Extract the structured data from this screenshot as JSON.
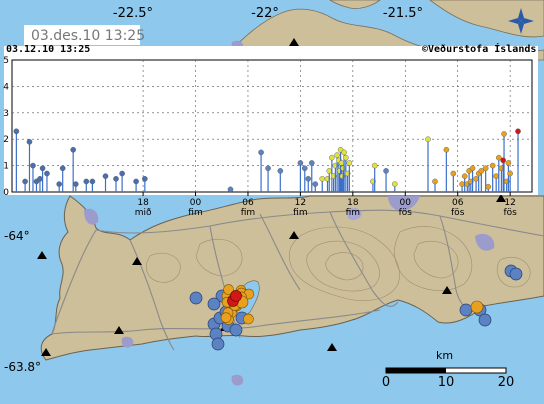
{
  "map": {
    "date_badge": "03.des.10  13:25",
    "timestamp": "03.12.10  13:25",
    "credit": "©Veðurstofa Íslands",
    "logo_icon": "vedurstofa-logo-icon",
    "longitude_labels": [
      "-22.5°",
      "-22°",
      "-21.5°"
    ],
    "latitude_labels": [
      "-64°",
      "-63.8°"
    ],
    "scale_bar": {
      "unit": "km",
      "ticks": [
        "0",
        "10",
        "20"
      ]
    },
    "colors": {
      "sea": "#8ec8ec",
      "land": "#cdbf9a",
      "contour": "#a08d70",
      "road": "#8a8a8a",
      "lake": "#a8a8d8",
      "town": "#9c9ccc",
      "oldest": "#4a6fae",
      "older": "#5b82c2",
      "recent_day": "#e0e040",
      "recent_hours": "#e8a020",
      "latest": "#d01818"
    },
    "quake_counts": {
      "red": 2,
      "orange": 22,
      "blue": 16
    }
  },
  "chart_data": {
    "type": "scatter",
    "title": "",
    "xlabel": "",
    "ylabel": "",
    "ylim": [
      0,
      5
    ],
    "y_ticks": [
      "0",
      "1",
      "2",
      "3",
      "4",
      "5"
    ],
    "x_ticks": [
      {
        "hour": "18",
        "day": "mið"
      },
      {
        "hour": "00",
        "day": "fim"
      },
      {
        "hour": "06",
        "day": "fim"
      },
      {
        "hour": "12",
        "day": "fim"
      },
      {
        "hour": "18",
        "day": "fim"
      },
      {
        "hour": "00",
        "day": "fös"
      },
      {
        "hour": "06",
        "day": "fös"
      },
      {
        "hour": "12",
        "day": "fös"
      }
    ],
    "grid": true,
    "series": [
      {
        "color": "#4a6fae",
        "points": [
          [
            -20.5,
            2.3
          ],
          [
            -19.5,
            0.4
          ],
          [
            -19.0,
            1.9
          ],
          [
            -18.6,
            1.0
          ],
          [
            -18.2,
            0.4
          ],
          [
            -17.8,
            0.5
          ],
          [
            -17.5,
            0.9
          ],
          [
            -17.0,
            0.7
          ],
          [
            -15.6,
            0.3
          ],
          [
            -15.2,
            0.9
          ],
          [
            -14.0,
            1.6
          ],
          [
            -13.7,
            0.3
          ],
          [
            -12.5,
            0.4
          ],
          [
            -11.8,
            0.4
          ],
          [
            -10.3,
            0.6
          ],
          [
            -9.1,
            0.5
          ],
          [
            -8.4,
            0.7
          ],
          [
            -6.8,
            0.4
          ],
          [
            -5.8,
            0.5
          ]
        ]
      },
      {
        "color": "#5b82c2",
        "points": [
          [
            4.0,
            0.1
          ],
          [
            7.5,
            1.5
          ],
          [
            8.3,
            0.9
          ],
          [
            9.7,
            0.8
          ],
          [
            12.0,
            1.1
          ],
          [
            12.5,
            0.9
          ],
          [
            12.9,
            0.5
          ],
          [
            13.3,
            1.1
          ],
          [
            13.7,
            0.3
          ],
          [
            21.8,
            0.8
          ]
        ]
      },
      {
        "color": "#e0e040",
        "points": [
          [
            14.5,
            0.5
          ],
          [
            15.1,
            0.5
          ],
          [
            15.3,
            0.8
          ],
          [
            15.6,
            1.3
          ],
          [
            15.8,
            0.6
          ],
          [
            16.0,
            1.0
          ],
          [
            16.2,
            1.4
          ],
          [
            16.4,
            1.2
          ],
          [
            16.5,
            0.8
          ],
          [
            16.6,
            1.6
          ],
          [
            16.7,
            1.1
          ],
          [
            16.8,
            0.6
          ],
          [
            16.9,
            0.9
          ],
          [
            17.0,
            1.5
          ],
          [
            17.2,
            1.3
          ],
          [
            17.4,
            0.7
          ],
          [
            17.6,
            1.1
          ],
          [
            20.3,
            0.4
          ],
          [
            20.5,
            1.0
          ],
          [
            22.8,
            0.3
          ],
          [
            26.6,
            2.0
          ]
        ]
      },
      {
        "color": "#e8a020",
        "points": [
          [
            27.4,
            0.4
          ],
          [
            28.7,
            1.6
          ],
          [
            29.5,
            0.7
          ],
          [
            30.5,
            0.3
          ],
          [
            30.8,
            0.6
          ],
          [
            31.1,
            0.3
          ],
          [
            31.3,
            0.8
          ],
          [
            31.5,
            0.4
          ],
          [
            31.7,
            0.9
          ],
          [
            32.1,
            0.5
          ],
          [
            32.4,
            0.7
          ],
          [
            32.7,
            0.8
          ],
          [
            33.2,
            0.9
          ],
          [
            33.5,
            0.2
          ],
          [
            34.0,
            1.0
          ],
          [
            34.4,
            0.6
          ],
          [
            34.7,
            1.3
          ],
          [
            35.0,
            0.9
          ],
          [
            35.3,
            2.2
          ],
          [
            35.6,
            0.4
          ],
          [
            35.8,
            1.1
          ],
          [
            36.0,
            0.7
          ]
        ]
      },
      {
        "color": "#d01818",
        "points": [
          [
            35.2,
            1.2
          ],
          [
            36.9,
            2.3
          ]
        ]
      }
    ]
  }
}
